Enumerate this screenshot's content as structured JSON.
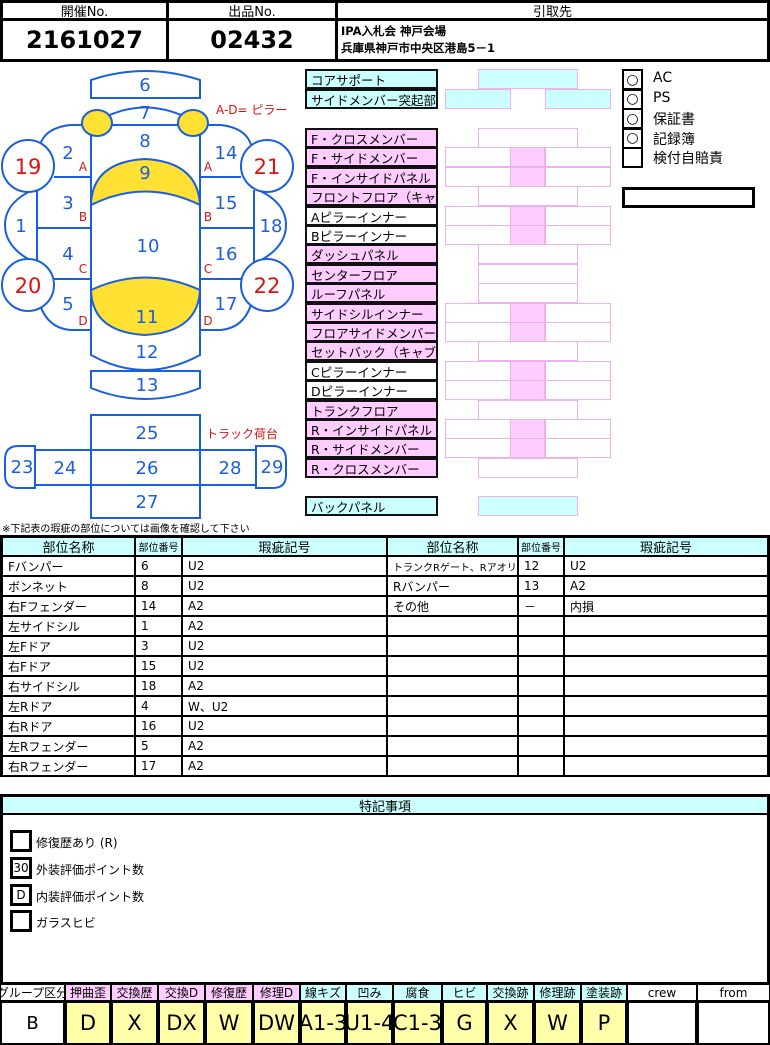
{
  "header": {
    "event_no_label": "開催No.",
    "lot_no_label": "出品No.",
    "pickup_label": "引取先",
    "event_no": "2161027",
    "lot_no": "02432",
    "pickup_line1": "IPA入札会 神戸会場",
    "pickup_line2": "兵庫県神戸市中央区港島5－1"
  },
  "diagram": {
    "pillar_note": "A-D= ピラー",
    "truck_note": "トラック荷台",
    "parts": [
      "1",
      "2",
      "3",
      "4",
      "5",
      "6",
      "7",
      "8",
      "9",
      "10",
      "11",
      "12",
      "13",
      "14",
      "15",
      "16",
      "17",
      "18",
      "19",
      "20",
      "21",
      "22",
      "23",
      "24",
      "25",
      "26",
      "27",
      "28",
      "29"
    ],
    "pillars": [
      "A",
      "B",
      "C",
      "D"
    ],
    "line_color": "#1a5fe0",
    "highlight_color": "#ffe033",
    "tire_number_color": "#dd1111"
  },
  "frame": {
    "top": [
      {
        "label": "コアサポート",
        "type": "center"
      },
      {
        "label": "サイドメンバー突起部",
        "type": "sides"
      }
    ],
    "items": [
      {
        "label": "F・クロスメンバー",
        "type": "center",
        "bg": "pink"
      },
      {
        "label": "F・サイドメンバー",
        "type": "pair",
        "bg": "pink"
      },
      {
        "label": "F・インサイドパネル",
        "type": "pair",
        "bg": "pink"
      },
      {
        "label": "フロントフロア（キャブ床）",
        "type": "center",
        "bg": "pink"
      },
      {
        "label": "Aピラーインナー",
        "type": "pair",
        "bg": "white"
      },
      {
        "label": "Bピラーインナー",
        "type": "pair",
        "bg": "white"
      },
      {
        "label": "ダッシュパネル",
        "type": "center",
        "bg": "pink"
      },
      {
        "label": "センターフロア",
        "type": "center",
        "bg": "pink"
      },
      {
        "label": "ルーフパネル",
        "type": "center",
        "bg": "pink"
      },
      {
        "label": "サイドシルインナー",
        "type": "pair",
        "bg": "pink"
      },
      {
        "label": "フロアサイドメンバー",
        "type": "pair",
        "bg": "pink"
      },
      {
        "label": "セットバック（キャブ背）",
        "type": "center",
        "bg": "pink"
      },
      {
        "label": "Cピラーインナー",
        "type": "pair",
        "bg": "white"
      },
      {
        "label": "Dピラーインナー",
        "type": "pair",
        "bg": "white"
      },
      {
        "label": "トランクフロア",
        "type": "center",
        "bg": "pink"
      },
      {
        "label": "R・インサイドパネル",
        "type": "pair",
        "bg": "pink"
      },
      {
        "label": "R・サイドメンバー",
        "type": "pair",
        "bg": "pink"
      },
      {
        "label": "R・クロスメンバー",
        "type": "center",
        "bg": "pink"
      }
    ],
    "back_panel": "バックパネル"
  },
  "equipment": [
    {
      "label": "AC",
      "mark": "○"
    },
    {
      "label": "PS",
      "mark": "○"
    },
    {
      "label": "保証書",
      "mark": "○"
    },
    {
      "label": "記録簿",
      "mark": "○"
    },
    {
      "label": "検付自賠責",
      "mark": ""
    }
  ],
  "equipment_extra": "",
  "damage_note": "※下記表の瑕疵の部位については画像を確認して下さい",
  "damage_table": {
    "headers": [
      "部位名称",
      "部位番号",
      "瑕疵記号",
      "部位名称",
      "部位番号",
      "瑕疵記号"
    ],
    "left_rows": [
      [
        "Fバンパー",
        "6",
        "U2"
      ],
      [
        "ボンネット",
        "8",
        "U2"
      ],
      [
        "右Fフェンダー",
        "14",
        "A2"
      ],
      [
        "左サイドシル",
        "1",
        "A2"
      ],
      [
        "左Fドア",
        "3",
        "U2"
      ],
      [
        "右Fドア",
        "15",
        "U2"
      ],
      [
        "右サイドシル",
        "18",
        "A2"
      ],
      [
        "左Rドア",
        "4",
        "W、U2"
      ],
      [
        "右Rドア",
        "16",
        "U2"
      ],
      [
        "左Rフェンダー",
        "5",
        "A2"
      ],
      [
        "右Rフェンダー",
        "17",
        "A2"
      ]
    ],
    "right_rows": [
      [
        "トランクRゲート、Rアオリ",
        "12",
        "U2"
      ],
      [
        "Rバンパー",
        "13",
        "A2"
      ],
      [
        "その他",
        "－",
        "内損"
      ],
      [
        "",
        "",
        ""
      ],
      [
        "",
        "",
        ""
      ],
      [
        "",
        "",
        ""
      ],
      [
        "",
        "",
        ""
      ],
      [
        "",
        "",
        ""
      ],
      [
        "",
        "",
        ""
      ],
      [
        "",
        "",
        ""
      ],
      [
        "",
        "",
        ""
      ]
    ]
  },
  "notes": {
    "title": "特記事項",
    "items": [
      {
        "label": "修復歴あり (R)",
        "value": ""
      },
      {
        "label": "外装評価ポイント数",
        "value": "30"
      },
      {
        "label": "内装評価ポイント数",
        "value": "D"
      },
      {
        "label": "ガラスヒビ",
        "value": ""
      }
    ]
  },
  "legend": {
    "headers": [
      {
        "label": "グループ区分",
        "bg": "white"
      },
      {
        "label": "押曲歪",
        "bg": "pink"
      },
      {
        "label": "交換歴",
        "bg": "pink"
      },
      {
        "label": "交換D",
        "bg": "pink"
      },
      {
        "label": "修復歴",
        "bg": "pink"
      },
      {
        "label": "修理D",
        "bg": "pink"
      },
      {
        "label": "線キズ",
        "bg": "cyan"
      },
      {
        "label": "凹み",
        "bg": "cyan"
      },
      {
        "label": "腐食",
        "bg": "cyan"
      },
      {
        "label": "ヒビ",
        "bg": "cyan"
      },
      {
        "label": "交換跡",
        "bg": "cyan"
      },
      {
        "label": "修理跡",
        "bg": "cyan"
      },
      {
        "label": "塗装跡",
        "bg": "cyan"
      },
      {
        "label": "crew",
        "bg": "white"
      },
      {
        "label": "from",
        "bg": "white"
      }
    ],
    "values": [
      "B",
      "D",
      "X",
      "DX",
      "W",
      "DW",
      "A1-3",
      "U1-4",
      "C1-3",
      "G",
      "X",
      "W",
      "P",
      "",
      ""
    ]
  }
}
